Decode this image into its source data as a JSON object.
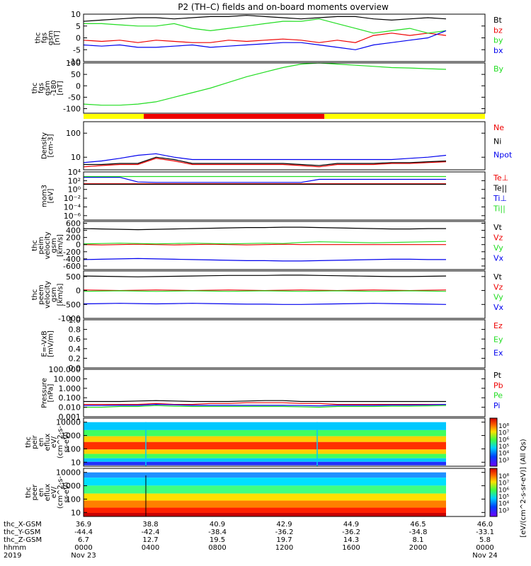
{
  "title": "P2 (TH–C) fields and on-board moments overview",
  "colors": {
    "black": "#000000",
    "red": "#ee0000",
    "green": "#22dd22",
    "blue": "#0000ee",
    "yellow": "#ffff00"
  },
  "chart_data": [
    {
      "type": "line",
      "id": "fgs_gsm",
      "ylabel": [
        "thc",
        "fgs",
        "gsm",
        "[nT]"
      ],
      "ylim": [
        -10,
        10
      ],
      "yticks": [
        10,
        5,
        0,
        -5,
        -10
      ],
      "series": [
        {
          "name": "Bt",
          "color": "black",
          "values": [
            7,
            7.5,
            8,
            8.5,
            8.5,
            8,
            8.5,
            9,
            9,
            9.5,
            9,
            8.5,
            8,
            8.5,
            9,
            9,
            8,
            7.5,
            8,
            8.5,
            8
          ]
        },
        {
          "name": "bz",
          "color": "red",
          "values": [
            -1,
            -1.5,
            -1,
            -2,
            -1,
            -1.5,
            -2,
            -2,
            -1,
            -1.5,
            -1,
            -0.5,
            -1,
            -2,
            -1,
            -2,
            1,
            2,
            1,
            2,
            1
          ]
        },
        {
          "name": "by",
          "color": "green",
          "values": [
            6,
            6,
            5.5,
            5,
            5,
            6,
            4,
            3,
            4,
            5,
            6,
            7,
            7,
            8,
            6,
            4,
            2,
            3,
            4,
            2,
            3
          ]
        },
        {
          "name": "bx",
          "color": "blue",
          "values": [
            -3,
            -3.5,
            -3,
            -4,
            -4,
            -3.5,
            -3,
            -4,
            -3.5,
            -3,
            -2.5,
            -2,
            -2,
            -3,
            -4,
            -5,
            -3,
            -2,
            -1,
            0,
            3
          ]
        }
      ]
    },
    {
      "type": "line",
      "id": "fgs_gsm_rot",
      "ylabel": [
        "thc",
        "fgs",
        "gsm",
        "-180",
        "[nT]"
      ],
      "ylim": [
        -120,
        100
      ],
      "yticks": [
        100,
        50,
        0,
        -50,
        -100
      ],
      "series": [
        {
          "name": "By",
          "color": "green",
          "values": [
            -80,
            -85,
            -85,
            -80,
            -70,
            -50,
            -30,
            -10,
            15,
            40,
            60,
            80,
            95,
            100,
            95,
            90,
            85,
            80,
            78,
            75,
            72
          ]
        }
      ]
    },
    {
      "type": "bar",
      "id": "mode_bar",
      "segments": [
        {
          "from": 0,
          "to": 0.15,
          "color": "yellow"
        },
        {
          "from": 0.15,
          "to": 0.6,
          "color": "red"
        },
        {
          "from": 0.6,
          "to": 1,
          "color": "yellow"
        }
      ]
    },
    {
      "type": "line",
      "id": "density",
      "ylabel": [
        "Density",
        "[cm-3]"
      ],
      "scale": "log",
      "ylim": [
        3,
        300
      ],
      "yticks": [
        {
          "v": 100,
          "l": "100"
        },
        {
          "v": 10,
          "l": "10"
        }
      ],
      "series": [
        {
          "name": "Ne",
          "color": "red",
          "values": [
            4,
            4.5,
            5,
            5,
            9,
            7,
            5,
            5,
            5,
            5,
            5,
            5,
            4.5,
            4,
            5,
            5,
            5,
            5.5,
            5.5,
            6,
            6.5
          ]
        },
        {
          "name": "Ni",
          "color": "black",
          "values": [
            5,
            5,
            5.5,
            5.5,
            10,
            8,
            5.5,
            5.5,
            5.5,
            5.5,
            5.5,
            5.5,
            5,
            4.5,
            5.5,
            5.5,
            5.5,
            6,
            6,
            6.5,
            7
          ]
        },
        {
          "name": "Npot",
          "color": "blue",
          "values": [
            6,
            7,
            9,
            12,
            14,
            10,
            8,
            8,
            8,
            8,
            8,
            8,
            8,
            8,
            8,
            8,
            8,
            8,
            9,
            10,
            12
          ]
        }
      ]
    },
    {
      "type": "line",
      "id": "moms_temp",
      "ylabel": [
        "mom3",
        "[eV]"
      ],
      "scale": "log",
      "ylim": [
        1e-07,
        10000
      ],
      "yticks": [
        {
          "v": 10000,
          "l": "10⁴"
        },
        {
          "v": 100,
          "l": "10²"
        },
        {
          "v": 1,
          "l": "10⁰"
        },
        {
          "v": 0.01,
          "l": "10⁻²"
        },
        {
          "v": 0.0001,
          "l": "10⁻⁴"
        },
        {
          "v": 1e-06,
          "l": "10⁻⁶"
        }
      ],
      "series": [
        {
          "name": "Te⊥",
          "color": "red",
          "values": [
            20,
            20,
            20,
            20,
            20,
            20,
            20,
            20,
            20,
            20,
            20,
            20,
            20,
            20,
            20,
            20,
            20,
            20,
            20,
            20,
            20
          ]
        },
        {
          "name": "Te||",
          "color": "black",
          "values": [
            15,
            15,
            15,
            15,
            15,
            15,
            15,
            15,
            15,
            15,
            15,
            15,
            15,
            15,
            15,
            15,
            15,
            15,
            15,
            15,
            15
          ]
        },
        {
          "name": "Ti⊥",
          "color": "blue",
          "values": [
            600,
            600,
            600,
            50,
            40,
            40,
            40,
            40,
            40,
            40,
            40,
            40,
            40,
            200,
            200,
            200,
            200,
            200,
            200,
            200,
            200
          ]
        },
        {
          "name": "Ti||",
          "color": "green",
          "values": [
            900,
            900,
            900,
            900,
            900,
            900,
            900,
            900,
            900,
            900,
            900,
            900,
            900,
            900,
            900,
            900,
            900,
            900,
            900,
            900,
            900
          ]
        }
      ]
    },
    {
      "type": "line",
      "id": "peim_vel",
      "ylabel": [
        "thc",
        "peim",
        "velocity",
        "gsm",
        "[km/s]"
      ],
      "ylim": [
        -700,
        650
      ],
      "yticks": [
        600,
        400,
        200,
        0,
        -200,
        -400,
        -600
      ],
      "series": [
        {
          "name": "Vt",
          "color": "black",
          "values": [
            450,
            440,
            430,
            420,
            430,
            440,
            450,
            460,
            470,
            480,
            480,
            490,
            490,
            480,
            470,
            460,
            450,
            440,
            440,
            450,
            450
          ]
        },
        {
          "name": "Vz",
          "color": "red",
          "values": [
            0,
            -10,
            0,
            10,
            0,
            -10,
            0,
            10,
            0,
            -10,
            0,
            10,
            0,
            0,
            0,
            0,
            0,
            0,
            0,
            0,
            0
          ]
        },
        {
          "name": "Vy",
          "color": "green",
          "values": [
            20,
            30,
            40,
            30,
            20,
            30,
            40,
            30,
            20,
            30,
            40,
            30,
            60,
            80,
            70,
            60,
            50,
            60,
            70,
            80,
            90
          ]
        },
        {
          "name": "Vx",
          "color": "blue",
          "values": [
            -420,
            -410,
            -400,
            -390,
            -400,
            -410,
            -420,
            -430,
            -440,
            -450,
            -450,
            -460,
            -460,
            -450,
            -440,
            -430,
            -420,
            -410,
            -410,
            -420,
            -420
          ]
        }
      ]
    },
    {
      "type": "line",
      "id": "peem_vel",
      "ylabel": [
        "thc",
        "peem",
        "velocity",
        "gsm",
        "[km/s]"
      ],
      "ylim": [
        -1000,
        700
      ],
      "yticks": [
        500,
        0,
        -500,
        -1000
      ],
      "series": [
        {
          "name": "Vt",
          "color": "black",
          "values": [
            520,
            510,
            500,
            490,
            500,
            510,
            520,
            530,
            540,
            540,
            540,
            550,
            550,
            540,
            530,
            520,
            510,
            500,
            500,
            510,
            520
          ]
        },
        {
          "name": "Vz",
          "color": "red",
          "values": [
            20,
            10,
            0,
            10,
            20,
            10,
            0,
            10,
            20,
            10,
            0,
            10,
            20,
            10,
            0,
            10,
            20,
            10,
            0,
            10,
            20
          ]
        },
        {
          "name": "Vy",
          "color": "green",
          "values": [
            -30,
            -20,
            -10,
            -20,
            -30,
            -20,
            -10,
            -20,
            -30,
            -20,
            -10,
            -20,
            -30,
            -20,
            -10,
            -20,
            -30,
            -20,
            -10,
            -20,
            -30
          ]
        },
        {
          "name": "Vx",
          "color": "blue",
          "values": [
            -480,
            -470,
            -460,
            -470,
            -480,
            -470,
            -460,
            -470,
            -480,
            -490,
            -490,
            -500,
            -500,
            -490,
            -480,
            -470,
            -460,
            -470,
            -480,
            -490,
            -500
          ]
        }
      ]
    },
    {
      "type": "line",
      "id": "efield",
      "ylabel": [
        "E=-VxB",
        "[mV/m]"
      ],
      "ylim": [
        0,
        1
      ],
      "yticks": [
        {
          "v": 1,
          "l": "1.0"
        },
        {
          "v": 0.8,
          "l": "0.8"
        },
        {
          "v": 0.6,
          "l": "0.6"
        },
        {
          "v": 0.4,
          "l": "0.4"
        },
        {
          "v": 0.2,
          "l": "0.2"
        },
        {
          "v": 0,
          "l": "0.0"
        }
      ],
      "series": [
        {
          "name": "Ez",
          "color": "red",
          "values": []
        },
        {
          "name": "Ey",
          "color": "green",
          "values": []
        },
        {
          "name": "Ex",
          "color": "blue",
          "values": []
        }
      ]
    },
    {
      "type": "line",
      "id": "pressure",
      "ylabel": [
        "Pressure",
        "[nPa]"
      ],
      "scale": "log",
      "ylim": [
        0.001,
        100
      ],
      "yticks": [
        {
          "v": 100,
          "l": "100.000"
        },
        {
          "v": 10,
          "l": "10.000"
        },
        {
          "v": 1,
          "l": "1.000"
        },
        {
          "v": 0.1,
          "l": "0.100"
        },
        {
          "v": 0.01,
          "l": "0.010"
        },
        {
          "v": 0.001,
          "l": "0.001"
        }
      ],
      "series": [
        {
          "name": "Pt",
          "color": "black",
          "values": [
            0.04,
            0.04,
            0.04,
            0.045,
            0.05,
            0.045,
            0.04,
            0.04,
            0.04,
            0.045,
            0.05,
            0.05,
            0.04,
            0.04,
            0.04,
            0.04,
            0.04,
            0.04,
            0.04,
            0.04,
            0.04
          ]
        },
        {
          "name": "Pb",
          "color": "red",
          "values": [
            0.02,
            0.02,
            0.02,
            0.02,
            0.025,
            0.02,
            0.02,
            0.025,
            0.025,
            0.03,
            0.03,
            0.03,
            0.025,
            0.025,
            0.02,
            0.02,
            0.02,
            0.02,
            0.02,
            0.02,
            0.02
          ]
        },
        {
          "name": "Pe",
          "color": "green",
          "values": [
            0.01,
            0.01,
            0.012,
            0.012,
            0.015,
            0.013,
            0.012,
            0.012,
            0.012,
            0.012,
            0.012,
            0.012,
            0.011,
            0.01,
            0.012,
            0.012,
            0.012,
            0.013,
            0.013,
            0.014,
            0.015
          ]
        },
        {
          "name": "Pi",
          "color": "blue",
          "values": [
            0.015,
            0.015,
            0.016,
            0.016,
            0.02,
            0.018,
            0.016,
            0.016,
            0.016,
            0.016,
            0.016,
            0.016,
            0.015,
            0.014,
            0.016,
            0.016,
            0.016,
            0.017,
            0.017,
            0.018,
            0.02
          ]
        }
      ]
    },
    {
      "type": "heatmap",
      "id": "peir_flux",
      "ylabel": [
        "thc",
        "peir",
        "en",
        "eflux",
        "eV/",
        "(cm^2-s-",
        "sr-eV)"
      ],
      "scale": "log",
      "ylim": [
        5,
        20000
      ],
      "yticks": [
        {
          "v": 10000,
          "l": "10000"
        },
        {
          "v": 1000,
          "l": "1000"
        },
        {
          "v": 100,
          "l": "100"
        },
        {
          "v": 10,
          "l": "10"
        }
      ]
    },
    {
      "type": "heatmap",
      "id": "peer_flux",
      "ylabel": [
        "thc",
        "peer",
        "en",
        "eflux",
        "eV/",
        "(cm^2-s-",
        "sr-eV)"
      ],
      "scale": "log",
      "ylim": [
        5,
        20000
      ],
      "yticks": [
        {
          "v": 10000,
          "l": "10000"
        },
        {
          "v": 1000,
          "l": "1000"
        },
        {
          "v": 100,
          "l": "100"
        },
        {
          "v": 10,
          "l": "10"
        }
      ]
    }
  ],
  "colorbar": {
    "label": "[eV/(cm^2-s-sr-eV)] (All Qs)",
    "upper": {
      "ticks": [
        "10⁸",
        "10⁷",
        "10⁶",
        "10⁵",
        "10⁴",
        "10³"
      ]
    },
    "lower": {
      "ticks": [
        "10⁸",
        "10⁷",
        "10⁶",
        "10⁵",
        "10⁴",
        "10³"
      ]
    }
  },
  "xaxis": {
    "rows": [
      {
        "label": "thc_X-GSM",
        "values": [
          "36.9",
          "38.8",
          "40.9",
          "42.9",
          "44.9",
          "46.5",
          "46.0"
        ]
      },
      {
        "label": "thc_Y-GSM",
        "values": [
          "-44.4",
          "-42.4",
          "-38.4",
          "-36.2",
          "-36.2",
          "-34.8",
          "-33.1"
        ]
      },
      {
        "label": "thc_Z-GSM",
        "values": [
          "6.7",
          "12.7",
          "19.5",
          "19.7",
          "14.3",
          "8.1",
          "5.8"
        ]
      },
      {
        "label": "hhmm",
        "values": [
          "0000",
          "0400",
          "0800",
          "1200",
          "1600",
          "2000",
          "0000"
        ]
      },
      {
        "label": "2019",
        "values": [
          "Nov 23",
          "",
          "",
          "",
          "",
          "",
          "Nov 24"
        ]
      }
    ]
  }
}
